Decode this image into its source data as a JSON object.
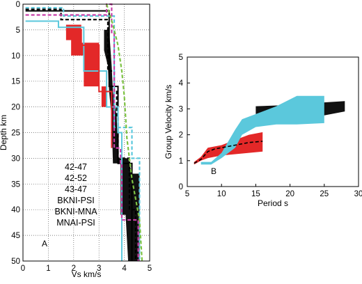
{
  "chart_data": [
    {
      "panel_label": "A",
      "type": "line",
      "xlabel": "Vs km/s",
      "ylabel": "Depth km",
      "xlim": [
        0,
        5
      ],
      "ylim": [
        50,
        0
      ],
      "xticks": [
        "0",
        "1",
        "2",
        "3",
        "4",
        "5"
      ],
      "yticks": [
        "0",
        "5",
        "10",
        "15",
        "20",
        "25",
        "30",
        "35",
        "40",
        "45",
        "50"
      ],
      "grid": true,
      "legend": [
        {
          "label": "42-47",
          "color": "#5bc8dc"
        },
        {
          "label": "42-52",
          "color": "#e32828"
        },
        {
          "label": "43-47",
          "color": "#e32828"
        },
        {
          "label": "BKNI-PSI",
          "color": "#000000"
        },
        {
          "label": "BKNI-MNA",
          "color": "#000000"
        },
        {
          "label": "MNAI-PSI",
          "color": "#000000"
        }
      ],
      "series": [
        {
          "id": "black-dashed-profile",
          "style": "step",
          "color": "#000000",
          "dash": true,
          "points": [
            [
              0.1,
              1
            ],
            [
              1.5,
              1
            ],
            [
              1.5,
              3
            ],
            [
              3.35,
              3
            ],
            [
              3.35,
              13
            ],
            [
              3.6,
              13
            ],
            [
              3.6,
              17
            ],
            [
              3.7,
              17
            ],
            [
              3.7,
              22
            ],
            [
              3.75,
              22
            ],
            [
              3.75,
              30
            ],
            [
              4.2,
              30
            ],
            [
              4.2,
              40
            ],
            [
              4.45,
              40
            ],
            [
              4.45,
              50
            ]
          ]
        },
        {
          "id": "black-solid-profile",
          "style": "step",
          "color": "#000000",
          "dash": false,
          "points": [
            [
              0.1,
              1.3
            ],
            [
              3.4,
              1.3
            ],
            [
              3.4,
              16
            ],
            [
              3.75,
              16
            ],
            [
              3.75,
              31
            ],
            [
              4.3,
              31
            ],
            [
              4.3,
              50
            ]
          ]
        },
        {
          "id": "cyan-dashed-profile",
          "style": "step",
          "color": "#5bc8dc",
          "dash": true,
          "points": [
            [
              0.1,
              0.7
            ],
            [
              1.6,
              0.7
            ],
            [
              1.6,
              2.3
            ],
            [
              3.6,
              2.3
            ],
            [
              3.6,
              24
            ],
            [
              4.3,
              24
            ],
            [
              4.3,
              30
            ],
            [
              4.6,
              30
            ],
            [
              4.6,
              50
            ]
          ]
        },
        {
          "id": "cyan-solid-profile",
          "style": "step",
          "color": "#5bc8dc",
          "dash": false,
          "points": [
            [
              0.1,
              3.3
            ],
            [
              1.4,
              3.3
            ],
            [
              1.4,
              4.5
            ],
            [
              2.4,
              4.5
            ],
            [
              2.4,
              13
            ],
            [
              3.3,
              13
            ],
            [
              3.3,
              20
            ],
            [
              3.75,
              20
            ],
            [
              3.75,
              25
            ],
            [
              3.9,
              25
            ],
            [
              3.9,
              50
            ]
          ]
        },
        {
          "id": "magenta-dashed-profile",
          "style": "step",
          "color": "#c83fa8",
          "dash": true,
          "points": [
            [
              0.1,
              2.1
            ],
            [
              3.3,
              2.1
            ],
            [
              3.3,
              0
            ],
            [
              3.5,
              0
            ],
            [
              3.5,
              5.5
            ],
            [
              3.6,
              5.5
            ],
            [
              3.6,
              28
            ],
            [
              3.85,
              28
            ],
            [
              3.85,
              31
            ],
            [
              3.9,
              31
            ],
            [
              3.9,
              42
            ],
            [
              4.55,
              42
            ],
            [
              4.55,
              50
            ]
          ]
        },
        {
          "id": "green-dashed-profile",
          "style": "line",
          "color": "#7cc242",
          "dash": true,
          "points": [
            [
              3.3,
              0
            ],
            [
              3.55,
              4
            ],
            [
              3.75,
              8
            ],
            [
              3.9,
              13
            ],
            [
              4.0,
              18
            ],
            [
              4.05,
              22
            ],
            [
              4.1,
              26
            ],
            [
              4.2,
              30
            ],
            [
              4.3,
              34
            ],
            [
              4.45,
              38
            ],
            [
              4.6,
              42
            ],
            [
              4.65,
              46
            ],
            [
              4.7,
              50
            ]
          ]
        },
        {
          "id": "red-solid-profile",
          "style": "step",
          "color": "#e32828",
          "dash": false,
          "points": [
            [
              1.7,
              5
            ],
            [
              2.3,
              5
            ],
            [
              2.3,
              8
            ],
            [
              3.0,
              8
            ],
            [
              3.0,
              17
            ],
            [
              3.5,
              17
            ],
            [
              3.5,
              28
            ]
          ]
        }
      ],
      "bands": [
        {
          "id": "red-band",
          "color": "#e32828",
          "polygon": [
            [
              1.7,
              4
            ],
            [
              2.3,
              4
            ],
            [
              2.3,
              7.5
            ],
            [
              3.0,
              7.5
            ],
            [
              3.0,
              16
            ],
            [
              3.3,
              16
            ],
            [
              3.3,
              20
            ],
            [
              3.1,
              20
            ],
            [
              3.1,
              16
            ],
            [
              2.4,
              16
            ],
            [
              2.4,
              10
            ],
            [
              1.9,
              10
            ],
            [
              1.9,
              7
            ],
            [
              1.7,
              7
            ]
          ]
        },
        {
          "id": "black-band",
          "color": "#111111",
          "polygon": [
            [
              3.2,
              5
            ],
            [
              3.4,
              5
            ],
            [
              3.5,
              12
            ],
            [
              3.55,
              17
            ],
            [
              3.7,
              22
            ],
            [
              3.75,
              30
            ],
            [
              4.15,
              30
            ],
            [
              4.3,
              33
            ],
            [
              4.6,
              33
            ],
            [
              4.6,
              50
            ],
            [
              4.15,
              50
            ],
            [
              4.05,
              41
            ],
            [
              3.85,
              41
            ],
            [
              3.85,
              31
            ],
            [
              3.55,
              31
            ],
            [
              3.5,
              22
            ],
            [
              3.4,
              17
            ],
            [
              3.35,
              12
            ],
            [
              3.2,
              9
            ]
          ]
        }
      ]
    },
    {
      "panel_label": "B",
      "type": "area",
      "xlabel": "Period s",
      "ylabel": "Group Velocity km/s",
      "xlim": [
        5,
        30
      ],
      "ylim": [
        0,
        5
      ],
      "xticks": [
        "5",
        "10",
        "15",
        "20",
        "25",
        "30"
      ],
      "yticks": [
        "0",
        "1",
        "2",
        "3",
        "4",
        "5"
      ],
      "grid": false,
      "bands": [
        {
          "id": "black-band",
          "color": "#111111",
          "x": [
            15,
            20,
            25,
            28
          ],
          "lower": [
            2.8,
            2.8,
            2.75,
            2.9
          ],
          "upper": [
            3.1,
            3.15,
            3.25,
            3.3
          ]
        },
        {
          "id": "red-band",
          "color": "#e32828",
          "x": [
            6,
            7,
            8,
            9,
            10,
            12,
            14,
            16
          ],
          "lower": [
            0.85,
            1.0,
            1.1,
            1.15,
            1.2,
            1.25,
            1.3,
            1.35
          ],
          "upper": [
            0.95,
            1.15,
            1.5,
            1.55,
            1.6,
            1.8,
            2.0,
            2.1
          ]
        },
        {
          "id": "cyan-band",
          "color": "#5bc8dc",
          "x": [
            7,
            8.5,
            10,
            12,
            13,
            15,
            18,
            21,
            25
          ],
          "lower": [
            0.85,
            0.85,
            1.1,
            1.5,
            2.0,
            2.3,
            2.4,
            2.4,
            2.45
          ],
          "upper": [
            0.95,
            0.95,
            1.3,
            2.2,
            2.6,
            2.8,
            3.1,
            3.5,
            3.5
          ]
        }
      ],
      "series": [
        {
          "id": "black-dashed-curve",
          "color": "#000000",
          "dash": true,
          "x": [
            6,
            7,
            8,
            9,
            10,
            12,
            14,
            16
          ],
          "y": [
            0.9,
            1.05,
            1.35,
            1.45,
            1.5,
            1.6,
            1.7,
            1.75
          ]
        }
      ]
    }
  ]
}
